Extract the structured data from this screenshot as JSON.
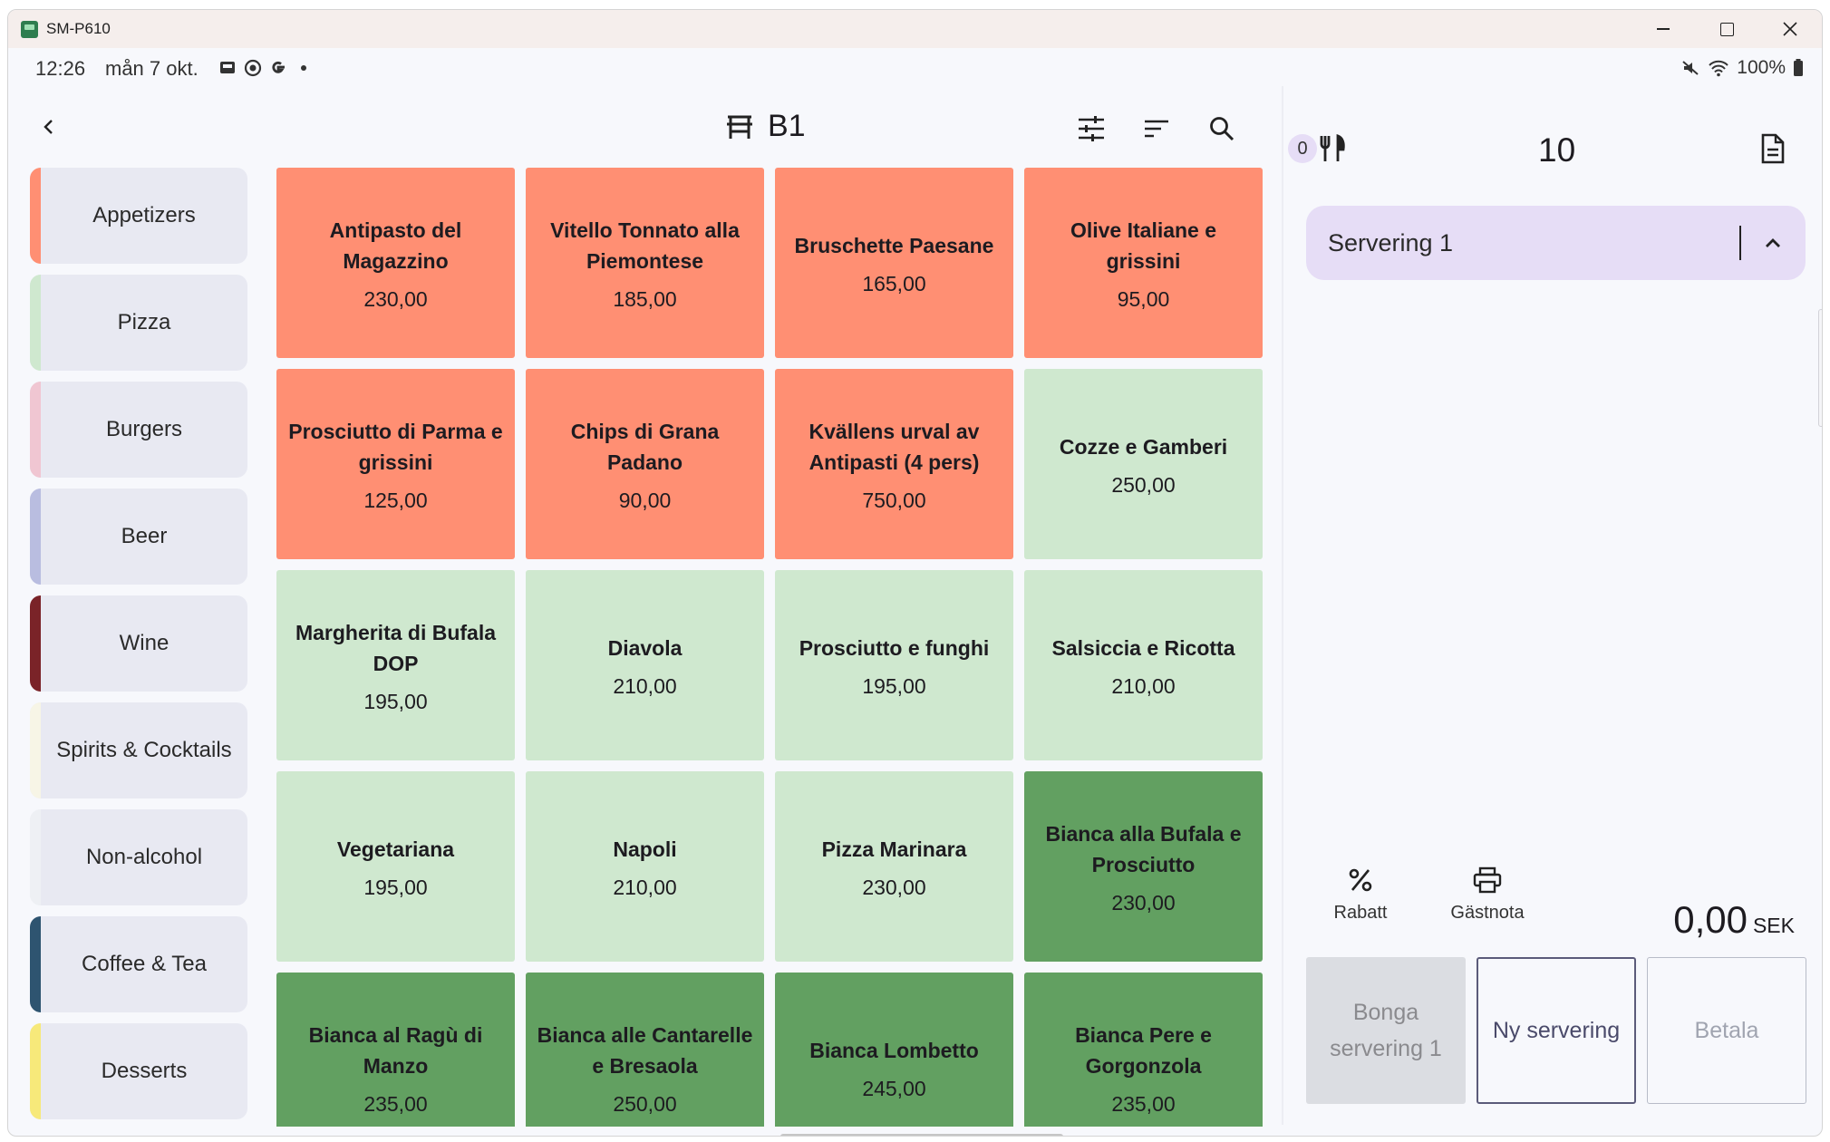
{
  "window": {
    "title": "SM-P610"
  },
  "status_bar": {
    "time": "12:26",
    "date": "mån 7 okt.",
    "battery": "100%"
  },
  "header": {
    "table_name": "B1"
  },
  "categories": [
    {
      "label": "Appetizers",
      "color": "#ff8f73"
    },
    {
      "label": "Pizza",
      "color": "#cfe8cf"
    },
    {
      "label": "Burgers",
      "color": "#f0c6d2"
    },
    {
      "label": "Beer",
      "color": "#b9bde0"
    },
    {
      "label": "Wine",
      "color": "#7a2328"
    },
    {
      "label": "Spirits & Cocktails",
      "color": "#f7f5e6"
    },
    {
      "label": "Non-alcohol",
      "color": "#eef0f4"
    },
    {
      "label": "Coffee & Tea",
      "color": "#2e5470"
    },
    {
      "label": "Desserts",
      "color": "#f7e97a"
    }
  ],
  "products": [
    {
      "name": "Antipasto del Magazzino",
      "price": "230,00",
      "color": "#ff8f73"
    },
    {
      "name": "Vitello Tonnato alla Piemontese",
      "price": "185,00",
      "color": "#ff8f73"
    },
    {
      "name": "Bruschette Paesane",
      "price": "165,00",
      "color": "#ff8f73"
    },
    {
      "name": "Olive Italiane e grissini",
      "price": "95,00",
      "color": "#ff8f73"
    },
    {
      "name": "Prosciutto di Parma e grissini",
      "price": "125,00",
      "color": "#ff8f73"
    },
    {
      "name": "Chips di Grana Padano",
      "price": "90,00",
      "color": "#ff8f73"
    },
    {
      "name": "Kvällens urval av Antipasti (4 pers)",
      "price": "750,00",
      "color": "#ff8f73"
    },
    {
      "name": "Cozze e Gamberi",
      "price": "250,00",
      "color": "#cfe8cf"
    },
    {
      "name": "Margherita di Bufala DOP",
      "price": "195,00",
      "color": "#cfe8cf"
    },
    {
      "name": "Diavola",
      "price": "210,00",
      "color": "#cfe8cf"
    },
    {
      "name": "Prosciutto e funghi",
      "price": "195,00",
      "color": "#cfe8cf"
    },
    {
      "name": "Salsiccia e Ricotta",
      "price": "210,00",
      "color": "#cfe8cf"
    },
    {
      "name": "Vegetariana",
      "price": "195,00",
      "color": "#cfe8cf"
    },
    {
      "name": "Napoli",
      "price": "210,00",
      "color": "#cfe8cf"
    },
    {
      "name": "Pizza Marinara",
      "price": "230,00",
      "color": "#cfe8cf"
    },
    {
      "name": "Bianca alla Bufala e Prosciutto",
      "price": "230,00",
      "color": "#62a061"
    },
    {
      "name": "Bianca al Ragù di Manzo",
      "price": "235,00",
      "color": "#62a061"
    },
    {
      "name": "Bianca alle Cantarelle e Bresaola",
      "price": "250,00",
      "color": "#62a061"
    },
    {
      "name": "Bianca Lombetto",
      "price": "245,00",
      "color": "#62a061"
    },
    {
      "name": "Bianca Pere e Gorgonzola",
      "price": "235,00",
      "color": "#62a061"
    }
  ],
  "order": {
    "guest_count": "0",
    "item_count": "10",
    "serving_label": "Servering 1",
    "discount_label": "Rabatt",
    "guest_note_label": "Gästnota",
    "total_value": "0,00",
    "currency": "SEK",
    "bonga_label": "Bonga servering 1",
    "new_serving_label": "Ny servering",
    "pay_label": "Betala"
  }
}
